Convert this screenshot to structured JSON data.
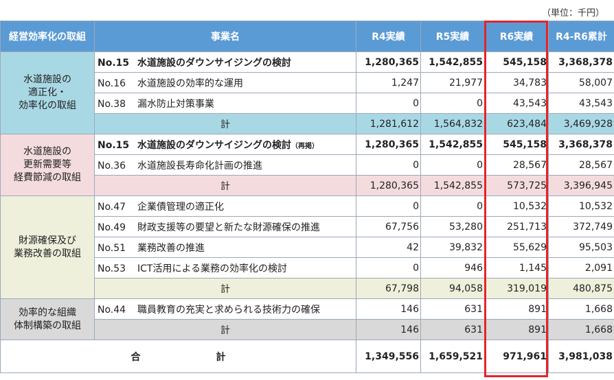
{
  "unit_note": "（単位：千円）",
  "headers": {
    "category": "経営効率化の取組",
    "project": "事業名",
    "r4": "R4実績",
    "r5": "R5実績",
    "r6": "R6実績",
    "cum": "R4-R6累計"
  },
  "groups": [
    {
      "category": "水道施設の適正化・効率化の取組",
      "category_lines": [
        "水道施設の",
        "適正化・",
        "効率化の取組"
      ],
      "rows": [
        {
          "no": "No.15",
          "name": "水道施設のダウンサイジングの検討",
          "r4": "1,280,365",
          "r5": "1,542,855",
          "r6": "545,158",
          "cum": "3,368,378"
        },
        {
          "no": "No.16",
          "name": "水道施設の効率的な運用",
          "r4": "1,247",
          "r5": "21,977",
          "r6": "34,783",
          "cum": "58,007"
        },
        {
          "no": "No.38",
          "name": "漏水防止対策事業",
          "r4": "0",
          "r5": "0",
          "r6": "43,543",
          "cum": "43,543"
        }
      ],
      "subtotal": {
        "label": "計",
        "r4": "1,281,612",
        "r5": "1,564,832",
        "r6": "623,484",
        "cum": "3,469,928"
      }
    },
    {
      "category": "水道施設の更新需要等経費節減の取組",
      "category_lines": [
        "水道施設の",
        "更新需要等",
        "経費節減の取組"
      ],
      "rows": [
        {
          "no": "No.15",
          "name": "水道施設のダウンサイジングの検討",
          "note": "（再掲）",
          "r4": "1,280,365",
          "r5": "1,542,855",
          "r6": "545,158",
          "cum": "3,368,378"
        },
        {
          "no": "No.36",
          "name": "水道施設長寿命化計画の推進",
          "r4": "0",
          "r5": "0",
          "r6": "28,567",
          "cum": "28,567"
        }
      ],
      "subtotal": {
        "label": "計",
        "r4": "1,280,365",
        "r5": "1,542,855",
        "r6": "573,725",
        "cum": "3,396,945"
      }
    },
    {
      "category": "財源確保及び業務改善の取組",
      "category_lines": [
        "財源確保及び",
        "業務改善の取組"
      ],
      "rows": [
        {
          "no": "No.47",
          "name": "企業債管理の適正化",
          "r4": "0",
          "r5": "0",
          "r6": "10,532",
          "cum": "10,532"
        },
        {
          "no": "No.49",
          "name": "財政支援等の要望と新たな財源確保の推進",
          "r4": "67,756",
          "r5": "53,280",
          "r6": "251,713",
          "cum": "372,749"
        },
        {
          "no": "No.51",
          "name": "業務改善の推進",
          "r4": "42",
          "r5": "39,832",
          "r6": "55,629",
          "cum": "95,503"
        },
        {
          "no": "No.53",
          "name": "ICT活用による業務の効率化の検討",
          "r4": "0",
          "r5": "946",
          "r6": "1,145",
          "cum": "2,091"
        }
      ],
      "subtotal": {
        "label": "計",
        "r4": "67,798",
        "r5": "94,058",
        "r6": "319,019",
        "cum": "480,875"
      }
    },
    {
      "category": "効率的な組織体制構築の取組",
      "category_lines": [
        "効率的な組織",
        "体制構築の取組"
      ],
      "rows": [
        {
          "no": "No.44",
          "name": "職員教育の充実と求められる技術力の確保",
          "r4": "146",
          "r5": "631",
          "r6": "891",
          "cum": "1,668"
        }
      ],
      "subtotal": {
        "label": "計",
        "r4": "146",
        "r5": "631",
        "r6": "891",
        "cum": "1,668"
      }
    }
  ],
  "total": {
    "label_1": "合",
    "label_2": "計",
    "r4": "1,349,556",
    "r5": "1,659,521",
    "r6": "971,961",
    "cum": "3,981,038"
  },
  "colors": {
    "header": "#5b9bd5",
    "group_1": "#a9d8e5",
    "group_2": "#f4dcde",
    "group_3": "#eef0dc",
    "group_4": "#d9d9d9",
    "highlight": "#e3242b"
  }
}
